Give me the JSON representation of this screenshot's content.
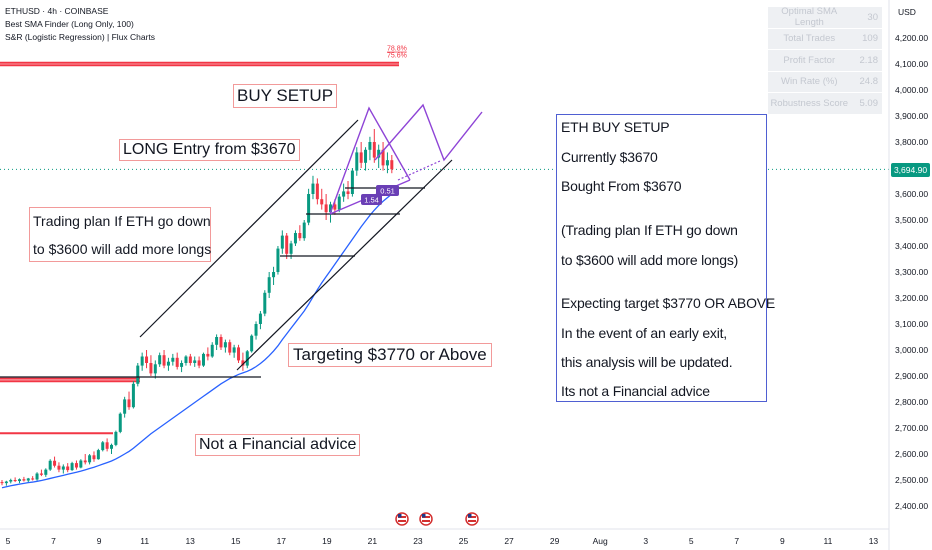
{
  "header": {
    "symbol_line": "ETHUSD · 4h · COINBASE",
    "indicator1": "Best SMA Finder (Long Only, 100)",
    "indicator2": "S&R (Logistic Regression) | Flux Charts"
  },
  "stats_panel": [
    {
      "label": "Optimal SMA Length",
      "value": "30"
    },
    {
      "label": "Total Trades",
      "value": "109"
    },
    {
      "label": "Profit Factor",
      "value": "2.18"
    },
    {
      "label": "Win Rate (%)",
      "value": "24.8"
    },
    {
      "label": "Robustness Score",
      "value": "5.09"
    }
  ],
  "annotations": {
    "buy_setup": "BUY SETUP",
    "long_entry": "LONG Entry from $3670",
    "trading_plan_l1": "Trading plan If ETH go down",
    "trading_plan_l2": "to $3600 will add more longs",
    "targeting": "Targeting $3770 or Above",
    "not_financial": "Not a Financial advice",
    "pct_label_1": "78.8%",
    "pct_label_2": "75.6%",
    "tag_051": "0.51",
    "tag_154": "1.54"
  },
  "info_box": {
    "line1": "ETH BUY SETUP",
    "line2": "Currently $3670",
    "line3": "Bought From $3670",
    "line4": "(Trading plan If ETH go down",
    "line5": "to $3600 will add more longs)",
    "line6": "Expecting target $3770 OR ABOVE",
    "line7": "In the event of an early exit,",
    "line8": "this analysis will be updated.",
    "line9": "Its not a Financial advice"
  },
  "colors": {
    "up": "#089981",
    "down": "#f23645",
    "sma": "#2962ff",
    "sr": "#f23645",
    "pattern": "#8e44d6",
    "infobox_border": "#4f5fd2"
  },
  "chart_data": {
    "type": "candlestick",
    "symbol": "ETHUSD",
    "timeframe": "4h",
    "currency": "USD",
    "last_price": "3,694.90",
    "y_range": [
      2350,
      4350
    ],
    "y_ticks": [
      "4,200.00",
      "4,100.00",
      "4,000.00",
      "3,900.00",
      "3,800.00",
      "3,700.00",
      "3,600.00",
      "3,500.00",
      "3,400.00",
      "3,300.00",
      "3,200.00",
      "3,100.00",
      "3,000.00",
      "2,900.00",
      "2,800.00",
      "2,700.00",
      "2,600.00",
      "2,500.00",
      "2,400.00"
    ],
    "x_ticks": [
      "5",
      "7",
      "9",
      "11",
      "13",
      "15",
      "17",
      "19",
      "21",
      "23",
      "25",
      "27",
      "29",
      "Aug",
      "3",
      "5",
      "7",
      "9",
      "11",
      "13"
    ],
    "sma_length": 30,
    "candles_ohlc": [
      [
        2492,
        2500,
        2480,
        2488
      ],
      [
        2488,
        2497,
        2478,
        2494
      ],
      [
        2494,
        2505,
        2487,
        2500
      ],
      [
        2500,
        2510,
        2492,
        2496
      ],
      [
        2496,
        2506,
        2488,
        2503
      ],
      [
        2503,
        2512,
        2494,
        2498
      ],
      [
        2498,
        2508,
        2490,
        2506
      ],
      [
        2506,
        2515,
        2498,
        2502
      ],
      [
        2502,
        2530,
        2498,
        2525
      ],
      [
        2525,
        2540,
        2515,
        2520
      ],
      [
        2520,
        2545,
        2512,
        2540
      ],
      [
        2540,
        2580,
        2535,
        2574
      ],
      [
        2574,
        2590,
        2548,
        2555
      ],
      [
        2555,
        2568,
        2530,
        2540
      ],
      [
        2540,
        2560,
        2525,
        2552
      ],
      [
        2552,
        2565,
        2530,
        2538
      ],
      [
        2538,
        2570,
        2535,
        2565
      ],
      [
        2565,
        2575,
        2540,
        2548
      ],
      [
        2548,
        2580,
        2545,
        2575
      ],
      [
        2575,
        2600,
        2560,
        2568
      ],
      [
        2568,
        2600,
        2560,
        2595
      ],
      [
        2595,
        2610,
        2570,
        2580
      ],
      [
        2580,
        2620,
        2578,
        2615
      ],
      [
        2615,
        2650,
        2610,
        2645
      ],
      [
        2645,
        2660,
        2610,
        2620
      ],
      [
        2620,
        2640,
        2600,
        2635
      ],
      [
        2635,
        2690,
        2630,
        2685
      ],
      [
        2685,
        2760,
        2680,
        2755
      ],
      [
        2755,
        2820,
        2740,
        2810
      ],
      [
        2810,
        2840,
        2770,
        2780
      ],
      [
        2780,
        2880,
        2775,
        2870
      ],
      [
        2870,
        2950,
        2860,
        2940
      ],
      [
        2940,
        2990,
        2920,
        2975
      ],
      [
        2975,
        3000,
        2930,
        2950
      ],
      [
        2950,
        2980,
        2900,
        2910
      ],
      [
        2910,
        2960,
        2890,
        2945
      ],
      [
        2945,
        2990,
        2935,
        2980
      ],
      [
        2980,
        3000,
        2930,
        2940
      ],
      [
        2940,
        2970,
        2920,
        2955
      ],
      [
        2955,
        2985,
        2940,
        2970
      ],
      [
        2970,
        2990,
        2925,
        2935
      ],
      [
        2935,
        2960,
        2915,
        2950
      ],
      [
        2950,
        2980,
        2940,
        2975
      ],
      [
        2975,
        2985,
        2940,
        2950
      ],
      [
        2950,
        2975,
        2935,
        2960
      ],
      [
        2960,
        2975,
        2930,
        2940
      ],
      [
        2940,
        2990,
        2935,
        2985
      ],
      [
        2985,
        3010,
        2960,
        2975
      ],
      [
        2975,
        3030,
        2970,
        3020
      ],
      [
        3020,
        3060,
        3000,
        3050
      ],
      [
        3050,
        3060,
        3000,
        3010
      ],
      [
        3010,
        3040,
        2990,
        3030
      ],
      [
        3030,
        3040,
        2980,
        2990
      ],
      [
        2990,
        3020,
        2970,
        3010
      ],
      [
        3010,
        3020,
        2950,
        2960
      ],
      [
        2960,
        2990,
        2920,
        2940
      ],
      [
        2940,
        3000,
        2930,
        2995
      ],
      [
        2995,
        3060,
        2990,
        3055
      ],
      [
        3055,
        3110,
        3040,
        3100
      ],
      [
        3100,
        3150,
        3080,
        3140
      ],
      [
        3140,
        3230,
        3130,
        3220
      ],
      [
        3220,
        3300,
        3200,
        3280
      ],
      [
        3280,
        3320,
        3250,
        3300
      ],
      [
        3300,
        3400,
        3290,
        3390
      ],
      [
        3390,
        3460,
        3370,
        3440
      ],
      [
        3440,
        3450,
        3350,
        3370
      ],
      [
        3370,
        3420,
        3350,
        3410
      ],
      [
        3410,
        3460,
        3400,
        3450
      ],
      [
        3450,
        3480,
        3420,
        3430
      ],
      [
        3430,
        3500,
        3420,
        3490
      ],
      [
        3490,
        3620,
        3480,
        3600
      ],
      [
        3600,
        3670,
        3580,
        3640
      ],
      [
        3640,
        3660,
        3560,
        3580
      ],
      [
        3580,
        3620,
        3540,
        3560
      ],
      [
        3560,
        3600,
        3500,
        3530
      ],
      [
        3530,
        3570,
        3490,
        3560
      ],
      [
        3560,
        3580,
        3520,
        3540
      ],
      [
        3540,
        3600,
        3530,
        3590
      ],
      [
        3590,
        3640,
        3570,
        3610
      ],
      [
        3610,
        3650,
        3580,
        3600
      ],
      [
        3600,
        3700,
        3590,
        3690
      ],
      [
        3690,
        3780,
        3670,
        3760
      ],
      [
        3760,
        3800,
        3700,
        3720
      ],
      [
        3720,
        3780,
        3690,
        3770
      ],
      [
        3770,
        3820,
        3730,
        3800
      ],
      [
        3800,
        3850,
        3720,
        3740
      ],
      [
        3740,
        3790,
        3700,
        3770
      ],
      [
        3770,
        3800,
        3690,
        3710
      ],
      [
        3710,
        3760,
        3680,
        3730
      ],
      [
        3730,
        3750,
        3680,
        3695
      ]
    ],
    "sma_values": [
      2470,
      2474,
      2478,
      2481,
      2484,
      2487,
      2490,
      2492,
      2495,
      2498,
      2502,
      2506,
      2510,
      2514,
      2518,
      2522,
      2526,
      2530,
      2534,
      2539,
      2544,
      2549,
      2555,
      2561,
      2567,
      2573,
      2581,
      2590,
      2600,
      2610,
      2622,
      2636,
      2650,
      2664,
      2678,
      2690,
      2702,
      2714,
      2726,
      2738,
      2750,
      2762,
      2774,
      2786,
      2798,
      2810,
      2822,
      2834,
      2846,
      2858,
      2870,
      2880,
      2890,
      2898,
      2906,
      2912,
      2918,
      2926,
      2936,
      2948,
      2962,
      2978,
      2996,
      3016,
      3040,
      3062,
      3084,
      3106,
      3128,
      3150,
      3176,
      3204,
      3232,
      3258,
      3282,
      3306,
      3330,
      3354,
      3378,
      3402,
      3426,
      3450,
      3474,
      3496,
      3518,
      3538,
      3556,
      3572,
      3586,
      3600
    ],
    "support_resistance": [
      {
        "price": 4105,
        "type": "resistance"
      },
      {
        "price": 4095,
        "type": "resistance"
      },
      {
        "price": 2880,
        "type": "support"
      },
      {
        "price": 2890,
        "type": "support"
      },
      {
        "price": 2680,
        "type": "support"
      }
    ],
    "trend_channel": {
      "upper": [
        [
          "11",
          3120
        ],
        [
          "21",
          3920
        ]
      ],
      "lower": [
        [
          "15",
          3000
        ],
        [
          "23",
          3720
        ]
      ]
    },
    "horizontal_levels": [
      3520,
      3620,
      3360,
      2900
    ],
    "projection_zigzag": [
      3530,
      3930,
      3640,
      3940,
      3720,
      3920
    ],
    "targets": {
      "entry": 3670,
      "add_longs": 3600,
      "target": 3770
    }
  }
}
